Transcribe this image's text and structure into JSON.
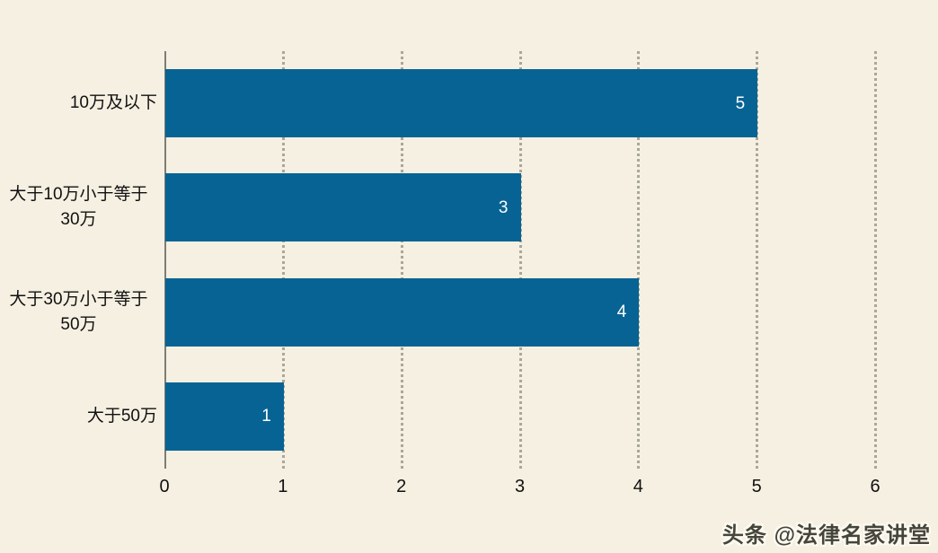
{
  "chart_data": {
    "type": "bar",
    "orientation": "horizontal",
    "title": "",
    "xlabel": "",
    "ylabel": "",
    "categories": [
      "10万及以下",
      "大于10万小于等于30万",
      "大于30万小于等于50万",
      "大于50万"
    ],
    "values": [
      5,
      3,
      4,
      1
    ],
    "x_ticks": [
      "0",
      "1",
      "2",
      "3",
      "4",
      "5",
      "6"
    ],
    "xlim": [
      0,
      6
    ],
    "grid": "dotted-vertical",
    "legend": "none",
    "bar_color": "#076394",
    "value_label_color": "#ffffff"
  },
  "colors": {
    "background": "#f6f0e2",
    "axis_line": "#7d7d73",
    "gridline": "#a8a79a",
    "text": "#111111"
  },
  "watermark": {
    "text": "头条 @法律名家讲堂"
  }
}
